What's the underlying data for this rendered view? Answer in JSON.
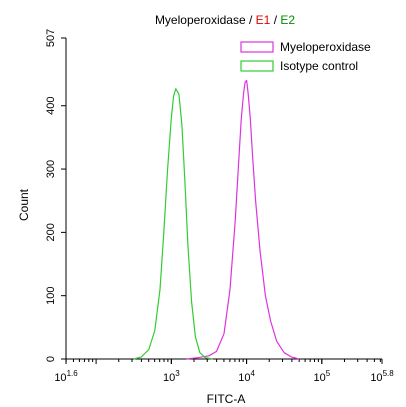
{
  "chart_data": {
    "type": "line",
    "title_parts": [
      {
        "text": "Myeloperoxidase",
        "color": "#000000"
      },
      {
        "text": " / ",
        "color": "#000000"
      },
      {
        "text": "E1",
        "color": "#e00000"
      },
      {
        "text": " / ",
        "color": "#000000"
      },
      {
        "text": "E2",
        "color": "#009000"
      }
    ],
    "xlabel": "FITC-A",
    "ylabel": "Count",
    "x_scale": "log10",
    "xlim": [
      1.6,
      5.8
    ],
    "ylim": [
      0,
      507
    ],
    "x_ticks": [
      {
        "exp": 1.6,
        "base": "10",
        "sup": "1.6"
      },
      {
        "exp": 3,
        "base": "10",
        "sup": "3"
      },
      {
        "exp": 4,
        "base": "10",
        "sup": "4"
      },
      {
        "exp": 5,
        "base": "10",
        "sup": "5"
      },
      {
        "exp": 5.8,
        "base": "10",
        "sup": "5.8"
      }
    ],
    "y_ticks": [
      0,
      100,
      200,
      300,
      400,
      507
    ],
    "grid": false,
    "legend_position": "top-right",
    "series": [
      {
        "name": "Myeloperoxidase",
        "color": "#dd33dd",
        "x_log": [
          3.2,
          3.35,
          3.5,
          3.6,
          3.7,
          3.78,
          3.85,
          3.9,
          3.93,
          3.96,
          3.98,
          4.0,
          4.02,
          4.05,
          4.08,
          4.12,
          4.18,
          4.25,
          4.32,
          4.4,
          4.5,
          4.6,
          4.7
        ],
        "y": [
          0,
          2,
          5,
          12,
          40,
          110,
          220,
          320,
          380,
          420,
          437,
          440,
          420,
          380,
          320,
          250,
          170,
          100,
          60,
          28,
          10,
          3,
          0
        ]
      },
      {
        "name": "Isotype control",
        "color": "#33cc33",
        "x_log": [
          2.5,
          2.6,
          2.7,
          2.78,
          2.85,
          2.9,
          2.95,
          3.0,
          3.03,
          3.06,
          3.1,
          3.14,
          3.18,
          3.22,
          3.27,
          3.32,
          3.38,
          3.45,
          3.55
        ],
        "y": [
          0,
          3,
          15,
          45,
          110,
          200,
          300,
          380,
          415,
          427,
          418,
          370,
          280,
          180,
          90,
          35,
          10,
          2,
          0
        ]
      }
    ]
  }
}
